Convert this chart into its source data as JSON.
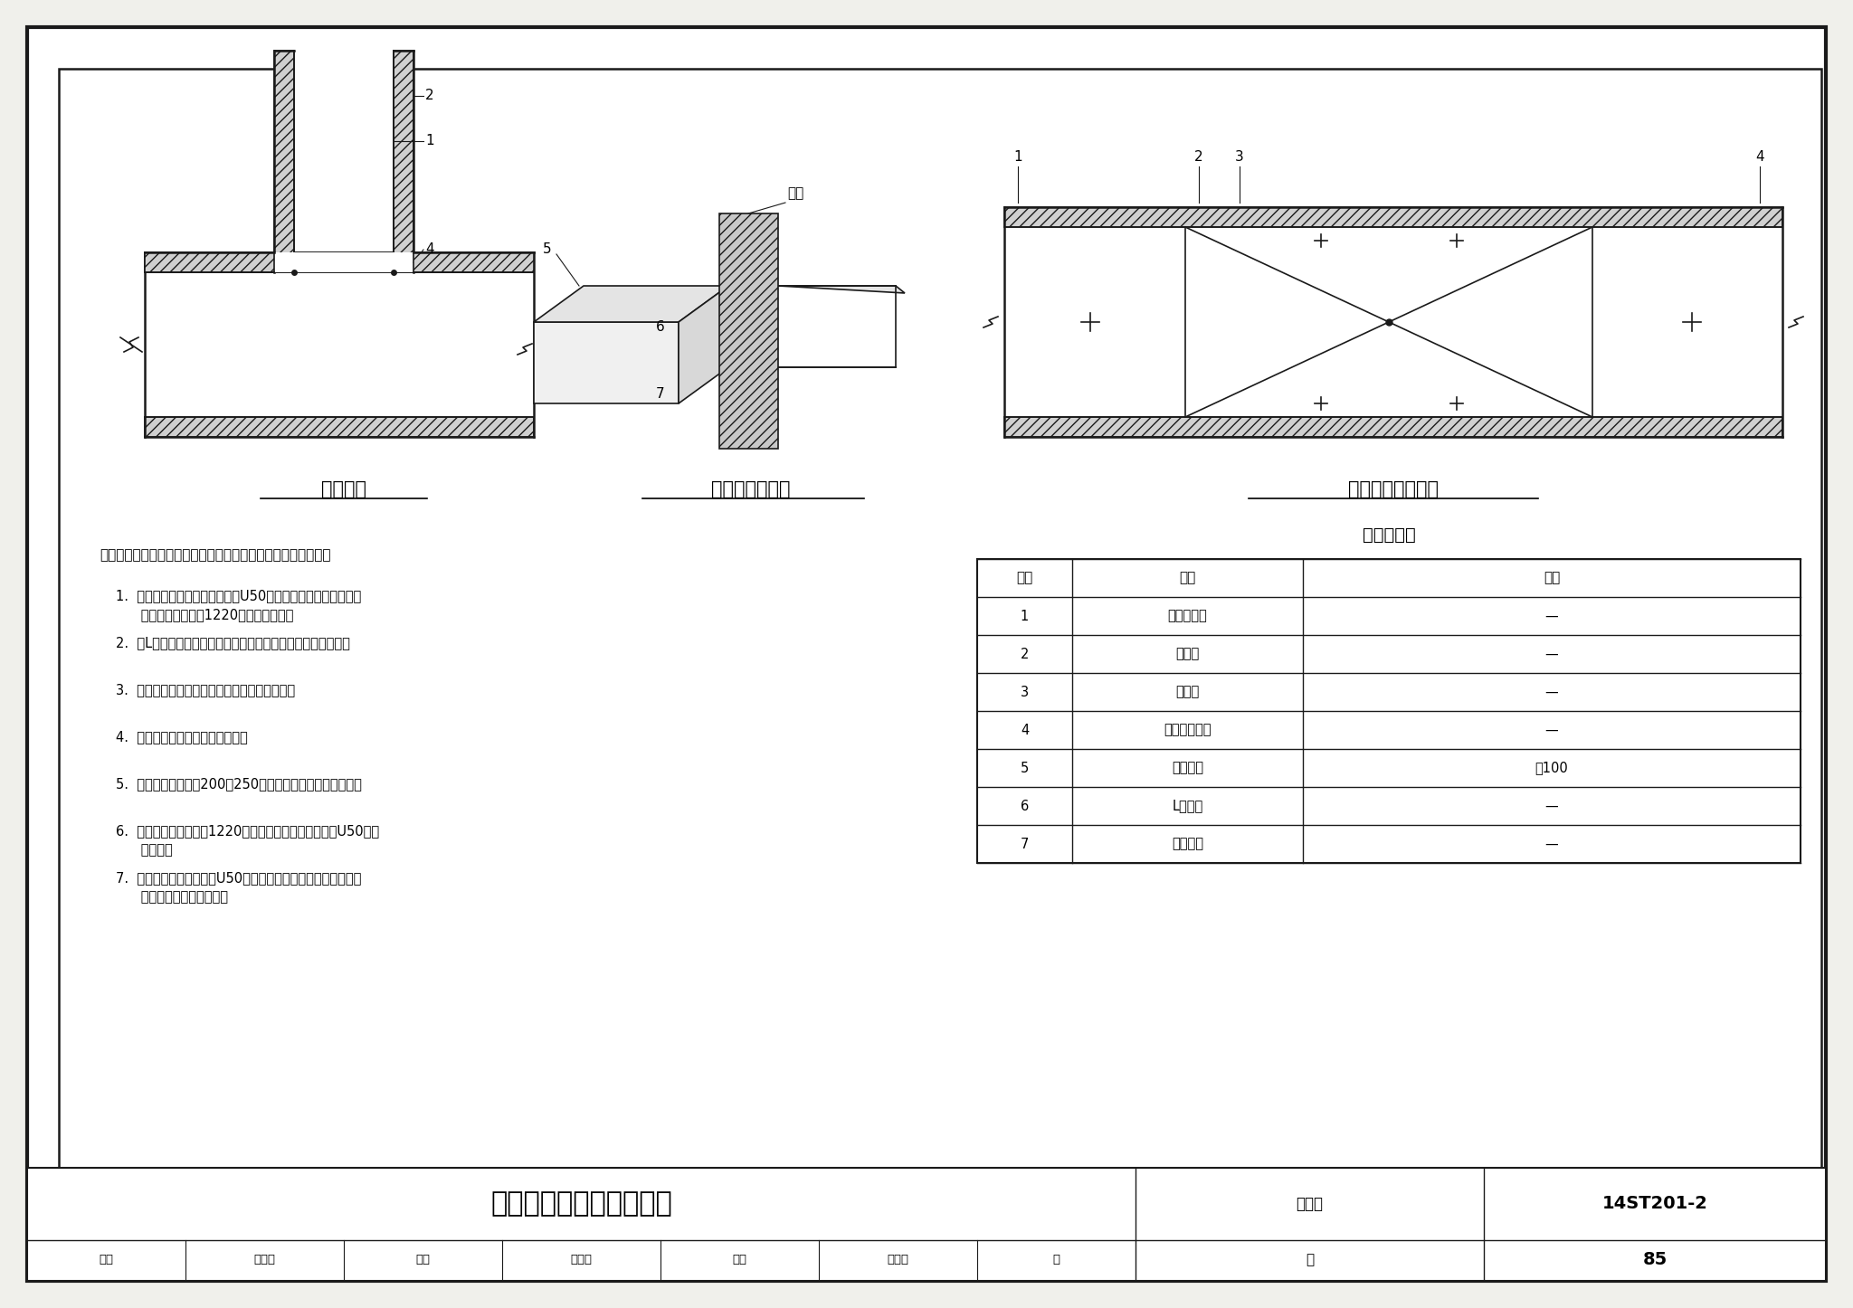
{
  "bg_color": "#f0f0eb",
  "white": "#ffffff",
  "ec": "#1a1a1a",
  "title_main": "风管特殊部位防火板包覆",
  "diagram_title1": "三通连接",
  "diagram_title2": "风管穿越隔墙图",
  "diagram_title3": "风管与防火阀连接",
  "table_title": "名称对照表",
  "table_headers": [
    "编号",
    "名称",
    "规格"
  ],
  "table_rows": [
    [
      "1",
      "轻钢龙骨圈",
      "—"
    ],
    [
      "2",
      "防火板",
      "—"
    ],
    [
      "3",
      "防火阀",
      "—"
    ],
    [
      "4",
      "镀锌铁皮风管",
      "—"
    ],
    [
      "5",
      "防火板条",
      "宽100"
    ],
    [
      "6",
      "L型龙骨",
      "—"
    ],
    [
      "7",
      "防火岩棉",
      "—"
    ]
  ],
  "notes_title": "注：纤维增强硅酸盐板（以下简称防火板）包覆的操作方法为：",
  "notes_items": [
    "根据铁皮风管截面尺寸，截切U50型龙骨用抽芯铆钉组合到铁\n      皮风管外侧，并按1220间距依次安装。",
    "用L型轻钢龙骨连接轻钢龙骨四个转角，形成轻钢龙骨骨架。",
    "铺保温材料于铁皮风管和轻钢龙骨骨架之间。",
    "根据轻钢龙骨骨架切割防火板。",
    "用自攻螺钉（间距200～250）固定防火板于轻钢龙骨架。",
    "当风管长边尺寸大于1220时，应在轻钢龙骨架上增加U50型龙\n      骨支撑。",
    "为了避免风管顶部横向U50轻钢龙骨于铁皮风管直接接触形成\n      冷桥，采用防火板隔断。"
  ],
  "footer_page": "85",
  "chart_id": "14ST201-2"
}
